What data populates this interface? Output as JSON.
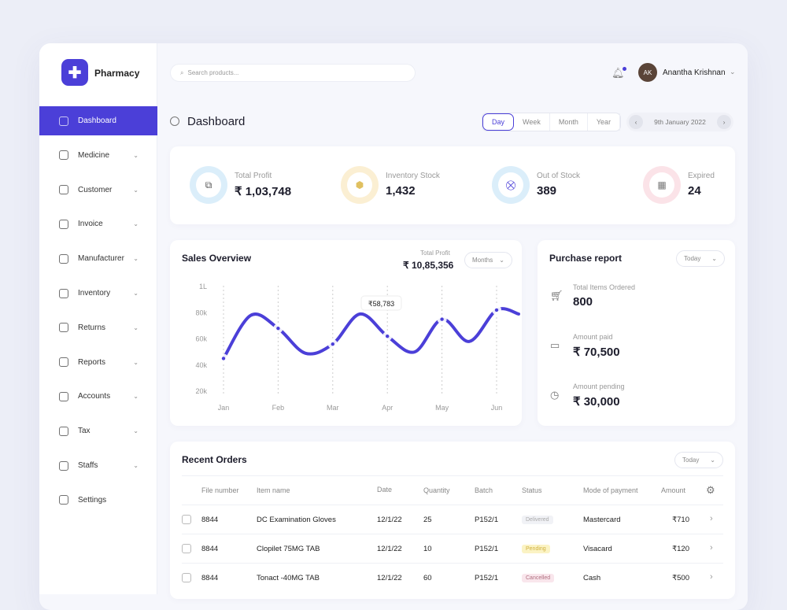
{
  "app": {
    "name": "Pharmacy"
  },
  "sidebar": {
    "items": [
      {
        "label": "Dashboard",
        "icon": "gauge-icon",
        "active": true
      },
      {
        "label": "Medicine",
        "icon": "pill-bottle-icon",
        "chevron": true
      },
      {
        "label": "Customer",
        "icon": "user-icon",
        "chevron": true
      },
      {
        "label": "Invoice",
        "icon": "document-icon",
        "chevron": true
      },
      {
        "label": "Manufacturer",
        "icon": "factory-icon",
        "chevron": true
      },
      {
        "label": "Inventory",
        "icon": "warehouse-icon",
        "chevron": true
      },
      {
        "label": "Returns",
        "icon": "return-icon",
        "chevron": true
      },
      {
        "label": "Reports",
        "icon": "clipboard-icon",
        "chevron": true
      },
      {
        "label": "Accounts",
        "icon": "wallet-icon",
        "chevron": true
      },
      {
        "label": "Tax",
        "icon": "percent-icon",
        "chevron": true
      },
      {
        "label": "Staffs",
        "icon": "staff-icon",
        "chevron": true
      },
      {
        "label": "Settings",
        "icon": "gear-icon"
      }
    ]
  },
  "header": {
    "search_placeholder": "Search products...",
    "user_name": "Anantha Krishnan",
    "user_initials": "AK"
  },
  "page": {
    "title": "Dashboard",
    "ranges": [
      "Day",
      "Week",
      "Month",
      "Year"
    ],
    "selected_range": "Day",
    "date": "9th January 2022"
  },
  "stats": [
    {
      "label": "Total Profit",
      "value": "₹ 1,03,748",
      "icon": "money-icon",
      "color": "#dbeefa"
    },
    {
      "label": "Inventory Stock",
      "value": "1,432",
      "icon": "box-icon",
      "color": "#fbefd3"
    },
    {
      "label": "Out of Stock",
      "value": "389",
      "icon": "cart-off-icon",
      "color": "#dbeefa"
    },
    {
      "label": "Expired",
      "value": "24",
      "icon": "calendar-off-icon",
      "color": "#fbe3e8"
    }
  ],
  "sales": {
    "title": "Sales Overview",
    "profit_label": "Total Profit",
    "profit_value": "₹ 10,85,356",
    "filter": "Months",
    "tooltip": "₹58,783"
  },
  "chart_data": {
    "type": "line",
    "categories": [
      "Jan",
      "Feb",
      "Mar",
      "Apr",
      "May",
      "Jun"
    ],
    "values": [
      45000,
      68000,
      56000,
      62000,
      75000,
      82000
    ],
    "y_ticks": [
      "1L",
      "80k",
      "60k",
      "40k",
      "20k"
    ],
    "ylim": [
      20000,
      100000
    ],
    "color": "#4b3fd8",
    "grid": "vertical dashed"
  },
  "purchase": {
    "title": "Purchase report",
    "filter": "Today",
    "items": [
      {
        "label": "Total Items Ordered",
        "value": "800",
        "icon": "cart-icon"
      },
      {
        "label": "Amount paid",
        "value": "₹ 70,500",
        "icon": "card-icon"
      },
      {
        "label": "Amount pending",
        "value": "₹ 30,000",
        "icon": "calendar-clock-icon"
      }
    ]
  },
  "orders": {
    "title": "Recent Orders",
    "filter": "Today",
    "columns": [
      "File number",
      "Item name",
      "Date",
      "Quantity",
      "Batch",
      "Status",
      "Mode of payment",
      "Amount"
    ],
    "rows": [
      {
        "file": "8844",
        "item": "DC Examination Gloves",
        "date": "12/1/22",
        "qty": "25",
        "batch": "P152/1",
        "status": "Delivered",
        "payment": "Mastercard",
        "amount": "₹710"
      },
      {
        "file": "8844",
        "item": "Clopilet 75MG TAB",
        "date": "12/1/22",
        "qty": "10",
        "batch": "P152/1",
        "status": "Pending",
        "payment": "Visacard",
        "amount": "₹120"
      },
      {
        "file": "8844",
        "item": "Tonact -40MG TAB",
        "date": "12/1/22",
        "qty": "60",
        "batch": "P152/1",
        "status": "Cancelled",
        "payment": "Cash",
        "amount": "₹500"
      }
    ]
  }
}
